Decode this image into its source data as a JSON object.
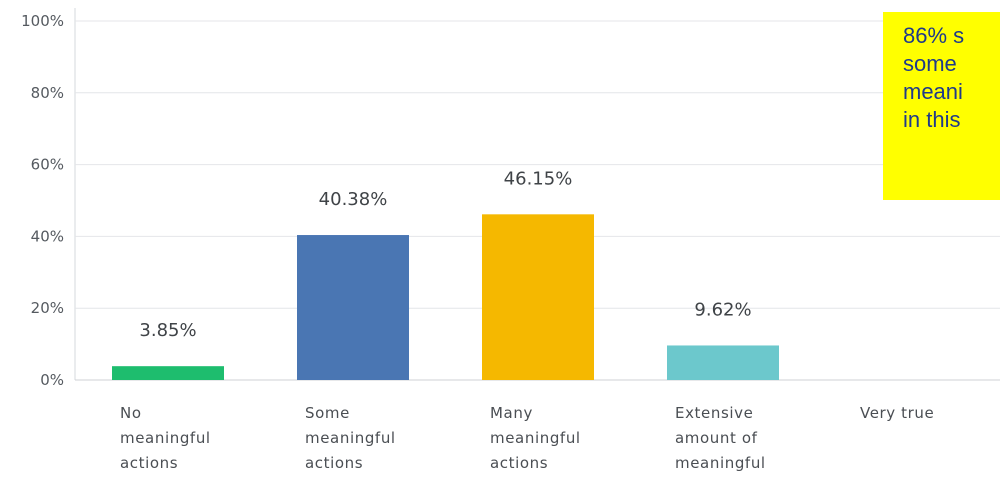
{
  "chart_data": {
    "type": "bar",
    "categories": [
      [
        "No",
        "meaningful",
        "actions"
      ],
      [
        "Some",
        "meaningful",
        "actions"
      ],
      [
        "Many",
        "meaningful",
        "actions"
      ],
      [
        "Extensive",
        "amount of",
        "meaningful"
      ],
      [
        "Very true"
      ]
    ],
    "values": [
      3.85,
      40.38,
      46.15,
      9.62,
      0
    ],
    "value_labels": [
      "3.85%",
      "40.38%",
      "46.15%",
      "9.62%",
      ""
    ],
    "colors": [
      "#1ebd6e",
      "#4a76b3",
      "#f5b800",
      "#6cc8cc",
      "#cccccc"
    ],
    "ylim": [
      0,
      100
    ],
    "yticks": [
      0,
      20,
      40,
      60,
      80,
      100
    ],
    "ytick_labels": [
      "0%",
      "20%",
      "40%",
      "60%",
      "80%",
      "100%"
    ],
    "grid": true
  },
  "annotation": {
    "text": "86% s\nsome\nmeani\nin this",
    "background": "#ffff00",
    "color": "#1f3a8a"
  }
}
